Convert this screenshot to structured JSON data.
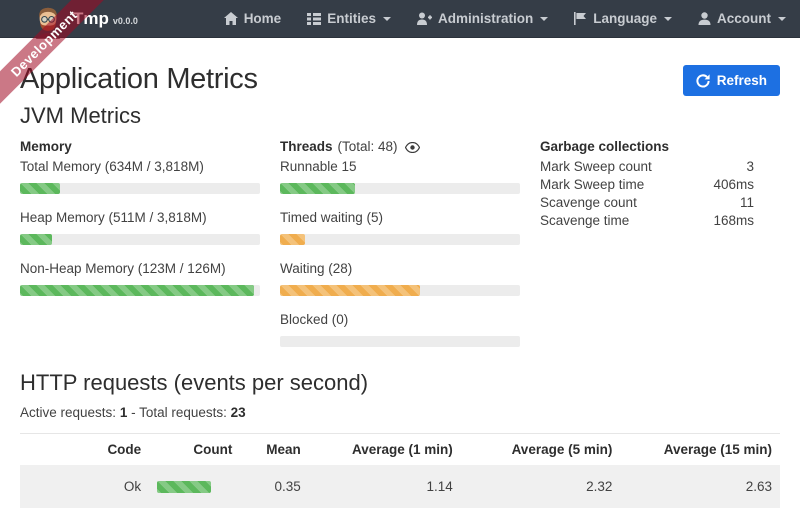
{
  "colors": {
    "accent_blue": "#1d70e2",
    "bar_green": "#5cb85c",
    "bar_orange": "#f0ad4e",
    "navbar_bg": "#353d47",
    "ribbon_red": "rgba(160,10,35,0.55)"
  },
  "brand": {
    "name": "Tmp",
    "version": "v0.0.0"
  },
  "ribbon": {
    "label": "Development"
  },
  "nav": {
    "items": [
      {
        "label": "Home",
        "icon": "home-icon"
      },
      {
        "label": "Entities",
        "icon": "list-icon"
      },
      {
        "label": "Administration",
        "icon": "user-plus-icon"
      },
      {
        "label": "Language",
        "icon": "flag-icon"
      },
      {
        "label": "Account",
        "icon": "user-icon"
      }
    ]
  },
  "page": {
    "title": "Application Metrics",
    "refresh_label": "Refresh"
  },
  "jvm": {
    "title": "JVM Metrics",
    "memory": {
      "title": "Memory",
      "bars": [
        {
          "label": "Total Memory (634M / 3,818M)",
          "pct": "16.6%",
          "color": "#5cb85c"
        },
        {
          "label": "Heap Memory (511M / 3,818M)",
          "pct": "13.4%",
          "color": "#5cb85c"
        },
        {
          "label": "Non-Heap Memory (123M / 126M)",
          "pct": "97.6%",
          "color": "#5cb85c"
        }
      ]
    },
    "threads": {
      "title": "Threads",
      "total": "(Total: 48)",
      "bars": [
        {
          "label": "Runnable 15",
          "pct": "31.3%",
          "color": "#5cb85c"
        },
        {
          "label": "Timed waiting (5)",
          "pct": "10.4%",
          "color": "#f0ad4e"
        },
        {
          "label": "Waiting (28)",
          "pct": "58.3%",
          "color": "#f0ad4e"
        },
        {
          "label": "Blocked (0)",
          "pct": "0%",
          "color": "#f0ad4e"
        }
      ]
    },
    "gc": {
      "title": "Garbage collections",
      "rows": [
        {
          "label": "Mark Sweep count",
          "value": "3"
        },
        {
          "label": "Mark Sweep time",
          "value": "406ms"
        },
        {
          "label": "Scavenge count",
          "value": "11"
        },
        {
          "label": "Scavenge time",
          "value": "168ms"
        }
      ]
    }
  },
  "http": {
    "title": "HTTP requests (events per second)",
    "active_label": "Active requests:",
    "active_value": "1",
    "separator": "-",
    "total_label": "Total requests:",
    "total_value": "23",
    "table": {
      "headers": [
        "Code",
        "Count",
        "Mean",
        "Average (1 min)",
        "Average (5 min)",
        "Average (15 min)"
      ],
      "rows": [
        {
          "code": "Ok",
          "count_bar_pct": "72%",
          "count_bar_color": "#5cb85c",
          "mean": "0.35",
          "avg_1min": "1.14",
          "avg_5min": "2.32",
          "avg_15min": "2.63"
        }
      ]
    }
  }
}
